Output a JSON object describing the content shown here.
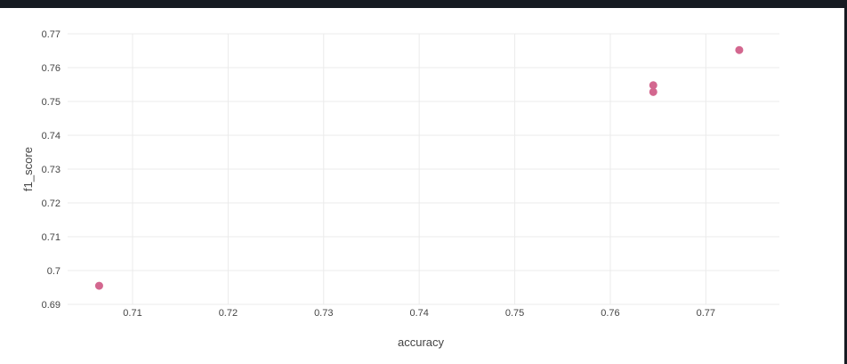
{
  "chart_data": {
    "type": "scatter",
    "xlabel": "accuracy",
    "ylabel": "f1_score",
    "xlim": [
      0.7032,
      0.7777
    ],
    "ylim": [
      0.69,
      0.77
    ],
    "x_ticks": [
      "0.71",
      "0.72",
      "0.73",
      "0.74",
      "0.75",
      "0.76",
      "0.77"
    ],
    "x_tick_values": [
      0.71,
      0.72,
      0.73,
      0.74,
      0.75,
      0.76,
      0.77
    ],
    "y_ticks": [
      "0.69",
      "0.7",
      "0.71",
      "0.72",
      "0.73",
      "0.74",
      "0.75",
      "0.76",
      "0.77"
    ],
    "y_tick_values": [
      0.69,
      0.7,
      0.71,
      0.72,
      0.73,
      0.74,
      0.75,
      0.76,
      0.77
    ],
    "grid": true,
    "marker_color": "#d3678f",
    "points": [
      {
        "x": 0.7065,
        "y": 0.6955
      },
      {
        "x": 0.7645,
        "y": 0.7528
      },
      {
        "x": 0.7645,
        "y": 0.7548
      },
      {
        "x": 0.7735,
        "y": 0.7652
      }
    ]
  }
}
